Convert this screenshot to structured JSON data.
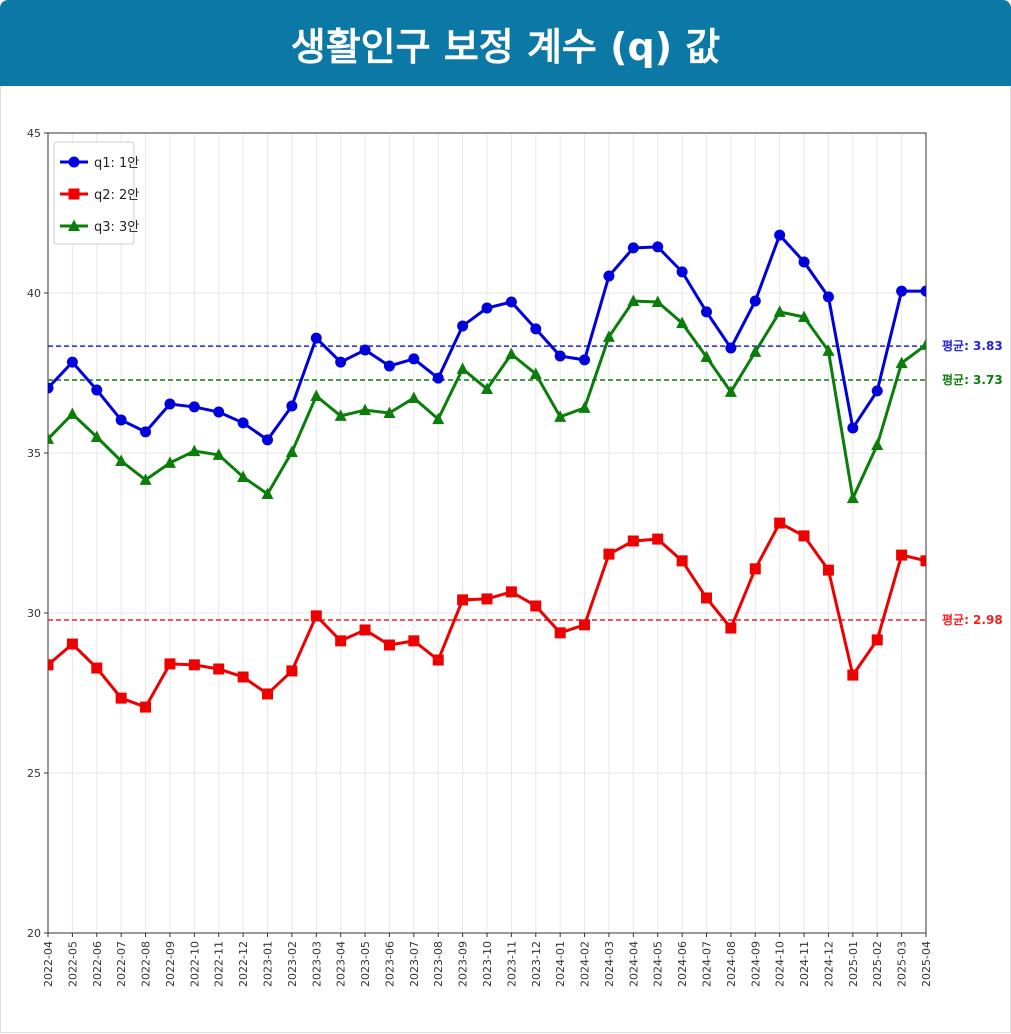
{
  "chart_data": {
    "type": "line",
    "title": "생활인구 보정 계수 (q) 값",
    "categories": [
      "2022-04",
      "2022-05",
      "2022-06",
      "2022-07",
      "2022-08",
      "2022-09",
      "2022-10",
      "2022-11",
      "2022-12",
      "2023-01",
      "2023-02",
      "2023-03",
      "2023-04",
      "2023-05",
      "2023-06",
      "2023-07",
      "2023-08",
      "2023-09",
      "2023-10",
      "2023-11",
      "2023-12",
      "2024-01",
      "2024-02",
      "2024-03",
      "2024-04",
      "2024-05",
      "2024-06",
      "2024-07",
      "2024-08",
      "2024-09",
      "2024-10",
      "2024-11",
      "2024-12",
      "2025-01",
      "2025-02",
      "2025-03",
      "2025-04"
    ],
    "series": [
      {
        "name": "q1: 1안",
        "color": "#0000dd",
        "marker": "circle",
        "values": [
          37.03,
          37.84,
          36.97,
          36.03,
          35.66,
          36.53,
          36.44,
          36.28,
          35.94,
          35.41,
          36.47,
          38.59,
          37.84,
          38.22,
          37.72,
          37.94,
          37.34,
          38.97,
          39.53,
          39.72,
          38.88,
          38.03,
          37.91,
          40.53,
          41.41,
          41.44,
          40.66,
          39.41,
          38.28,
          39.75,
          41.81,
          40.97,
          39.88,
          35.78,
          36.94,
          40.06,
          40.06
        ]
      },
      {
        "name": "q2: 2안",
        "color": "#ee0000",
        "marker": "square",
        "values": [
          28.38,
          29.03,
          28.28,
          27.34,
          27.06,
          28.41,
          28.38,
          28.25,
          28.0,
          27.47,
          28.19,
          29.91,
          29.13,
          29.47,
          29.0,
          29.13,
          28.53,
          30.41,
          30.44,
          30.66,
          30.22,
          29.38,
          29.63,
          31.84,
          32.25,
          32.31,
          31.63,
          30.47,
          29.53,
          31.38,
          32.81,
          32.41,
          31.34,
          28.06,
          29.16,
          31.81,
          31.63
        ]
      },
      {
        "name": "q3: 3안",
        "color": "#0a7d0a",
        "marker": "triangle",
        "values": [
          35.44,
          36.22,
          35.5,
          34.75,
          34.16,
          34.69,
          35.06,
          34.94,
          34.25,
          33.72,
          35.03,
          36.78,
          36.16,
          36.34,
          36.25,
          36.72,
          36.06,
          37.63,
          37.0,
          38.09,
          37.47,
          36.13,
          36.41,
          38.63,
          39.75,
          39.72,
          39.06,
          38.0,
          36.91,
          38.16,
          39.41,
          39.25,
          38.19,
          33.59,
          35.25,
          37.81,
          38.38
        ]
      }
    ],
    "reference_lines": [
      {
        "value": 38.34,
        "color": "#2222dd",
        "label": "평균: 3.83"
      },
      {
        "value": 37.28,
        "color": "#0a7d0a",
        "label": "평균: 3.73"
      },
      {
        "value": 29.78,
        "color": "#ee2222",
        "label": "평균: 2.98"
      }
    ],
    "ylim": [
      20,
      45
    ],
    "yticks": [
      20,
      25,
      30,
      35,
      40,
      45
    ],
    "grid": true,
    "legend": "upper left"
  }
}
